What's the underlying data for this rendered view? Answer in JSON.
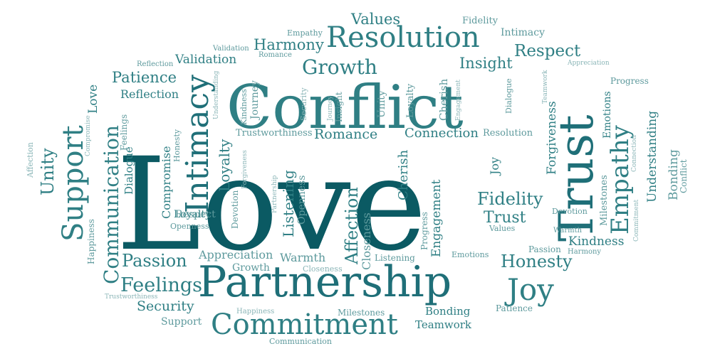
{
  "palette": {
    "dark": "#0b5a63",
    "mid": "#1f6f78",
    "teal": "#2f7f84",
    "soft": "#5e9a9d",
    "light": "#8ab5b7"
  },
  "words": [
    {
      "text": "Love",
      "tone": "dark"
    },
    {
      "text": "Conflict",
      "tone": "teal"
    },
    {
      "text": "Partnership",
      "tone": "mid"
    },
    {
      "text": "Trust",
      "tone": "mid"
    },
    {
      "text": "Resolution",
      "tone": "teal"
    },
    {
      "text": "Commitment",
      "tone": "teal"
    },
    {
      "text": "Intimacy",
      "tone": "mid"
    },
    {
      "text": "Support",
      "tone": "teal"
    },
    {
      "text": "Communication",
      "tone": "teal"
    },
    {
      "text": "Empathy",
      "tone": "teal"
    },
    {
      "text": "Joy",
      "tone": "teal"
    },
    {
      "text": "Growth",
      "tone": "teal"
    },
    {
      "text": "Harmony",
      "tone": "teal"
    },
    {
      "text": "Values",
      "tone": "teal"
    },
    {
      "text": "Respect",
      "tone": "teal"
    },
    {
      "text": "Insight",
      "tone": "teal"
    },
    {
      "text": "Patience",
      "tone": "teal"
    },
    {
      "text": "Reflection",
      "tone": "teal"
    },
    {
      "text": "Validation",
      "tone": "teal"
    },
    {
      "text": "Empathy",
      "tone": "soft"
    },
    {
      "text": "Fidelity",
      "tone": "soft"
    },
    {
      "text": "Intimacy",
      "tone": "soft"
    },
    {
      "text": "Validation",
      "tone": "soft"
    },
    {
      "text": "Romance",
      "tone": "soft"
    },
    {
      "text": "Reflection",
      "tone": "soft"
    },
    {
      "text": "Appreciation",
      "tone": "light"
    },
    {
      "text": "Teamwork",
      "tone": "light"
    },
    {
      "text": "Progress",
      "tone": "soft"
    },
    {
      "text": "Passion",
      "tone": "teal"
    },
    {
      "text": "Feelings",
      "tone": "teal"
    },
    {
      "text": "Security",
      "tone": "teal"
    },
    {
      "text": "Support",
      "tone": "soft"
    },
    {
      "text": "Honesty",
      "tone": "teal"
    },
    {
      "text": "Fidelity",
      "tone": "teal"
    },
    {
      "text": "Trust",
      "tone": "teal"
    },
    {
      "text": "Kindness",
      "tone": "teal"
    },
    {
      "text": "Bonding",
      "tone": "teal"
    },
    {
      "text": "Teamwork",
      "tone": "teal"
    },
    {
      "text": "Patience",
      "tone": "soft"
    },
    {
      "text": "Romance",
      "tone": "teal"
    },
    {
      "text": "Connection",
      "tone": "teal"
    },
    {
      "text": "Resolution",
      "tone": "soft"
    },
    {
      "text": "Trustworthiness",
      "tone": "soft"
    },
    {
      "text": "Loyalty",
      "tone": "teal"
    },
    {
      "text": "Compromise",
      "tone": "teal"
    },
    {
      "text": "Respect",
      "tone": "soft"
    },
    {
      "text": "Openness",
      "tone": "soft"
    },
    {
      "text": "Appreciation",
      "tone": "soft"
    },
    {
      "text": "Growth",
      "tone": "soft"
    },
    {
      "text": "Warmth",
      "tone": "soft"
    },
    {
      "text": "Closeness",
      "tone": "light"
    },
    {
      "text": "Listening",
      "tone": "soft"
    },
    {
      "text": "Emotions",
      "tone": "soft"
    },
    {
      "text": "Passion",
      "tone": "soft"
    },
    {
      "text": "Harmony",
      "tone": "soft"
    },
    {
      "text": "Devotion",
      "tone": "soft"
    },
    {
      "text": "Warmth",
      "tone": "soft"
    },
    {
      "text": "Values",
      "tone": "soft"
    },
    {
      "text": "Happiness",
      "tone": "light"
    },
    {
      "text": "Milestones",
      "tone": "soft"
    },
    {
      "text": "Communication",
      "tone": "soft"
    },
    {
      "text": "Trustworthiness",
      "tone": "light"
    },
    {
      "text": "Bonding",
      "tone": "soft"
    },
    {
      "text": "Dialogue",
      "tone": "teal"
    },
    {
      "text": "Feelings",
      "tone": "soft"
    },
    {
      "text": "Compromise",
      "tone": "light"
    },
    {
      "text": "Affection",
      "tone": "light"
    },
    {
      "text": "Unity",
      "tone": "teal"
    },
    {
      "text": "Happiness",
      "tone": "soft"
    },
    {
      "text": "Love",
      "tone": "teal"
    },
    {
      "text": "Honesty",
      "tone": "soft"
    },
    {
      "text": "Understanding",
      "tone": "light"
    },
    {
      "text": "Kindness",
      "tone": "soft"
    },
    {
      "text": "Journey",
      "tone": "soft"
    },
    {
      "text": "Security",
      "tone": "light"
    },
    {
      "text": "Journey",
      "tone": "light"
    },
    {
      "text": "Insight",
      "tone": "soft"
    },
    {
      "text": "Unity",
      "tone": "soft"
    },
    {
      "text": "Loyalty",
      "tone": "soft"
    },
    {
      "text": "Cherish",
      "tone": "soft"
    },
    {
      "text": "Engagement",
      "tone": "light"
    },
    {
      "text": "Dialogue",
      "tone": "soft"
    },
    {
      "text": "Forgiveness",
      "tone": "teal"
    },
    {
      "text": "Milestones",
      "tone": "soft"
    },
    {
      "text": "Connection",
      "tone": "light"
    },
    {
      "text": "Emotions",
      "tone": "teal"
    },
    {
      "text": "Understanding",
      "tone": "teal"
    },
    {
      "text": "Conflict",
      "tone": "soft"
    },
    {
      "text": "Commitment",
      "tone": "light"
    },
    {
      "text": "Devotion",
      "tone": "soft"
    },
    {
      "text": "Forgiveness",
      "tone": "light"
    },
    {
      "text": "Partnership",
      "tone": "light"
    },
    {
      "text": "Listening",
      "tone": "teal"
    },
    {
      "text": "Openness",
      "tone": "soft"
    },
    {
      "text": "Affection",
      "tone": "teal"
    },
    {
      "text": "Closeness",
      "tone": "soft"
    },
    {
      "text": "Cherish",
      "tone": "teal"
    },
    {
      "text": "Engagement",
      "tone": "teal"
    },
    {
      "text": "Progress",
      "tone": "soft"
    },
    {
      "text": "Joy",
      "tone": "teal"
    }
  ]
}
